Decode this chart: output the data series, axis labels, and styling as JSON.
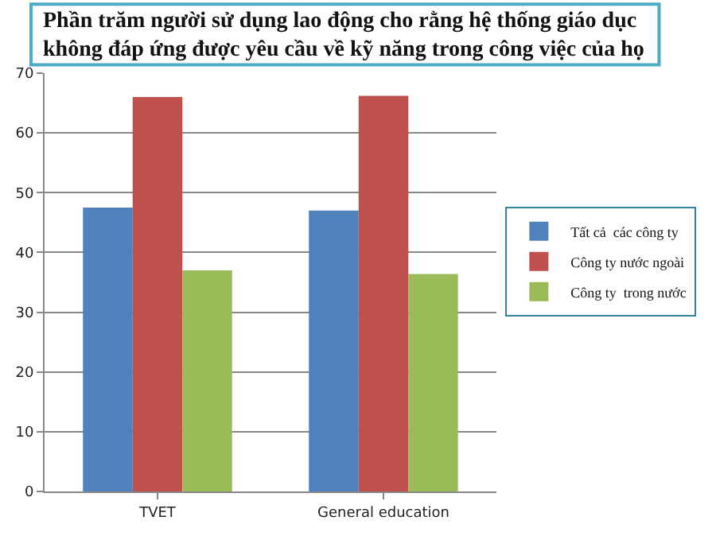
{
  "chart_data": {
    "type": "bar",
    "title": "Phần trăm người sử dụng lao động cho rằng hệ thống giáo dục\nkhông đáp ứng được yêu cầu về kỹ năng trong công việc của họ",
    "categories": [
      "TVET",
      "General education"
    ],
    "series": [
      {
        "name": "Tất cả  các công ty",
        "color": "#4f81bd",
        "values": [
          47.5,
          47
        ]
      },
      {
        "name": "Công ty nước ngoài",
        "color": "#c0504d",
        "values": [
          66,
          66.2
        ]
      },
      {
        "name": "Công ty  trong nước",
        "color": "#9bbb59",
        "values": [
          37,
          36.4
        ]
      }
    ],
    "ylim": [
      0,
      70
    ],
    "yticks": [
      0,
      10,
      20,
      30,
      40,
      50,
      60,
      70
    ],
    "grid": "y",
    "legend": "right"
  }
}
